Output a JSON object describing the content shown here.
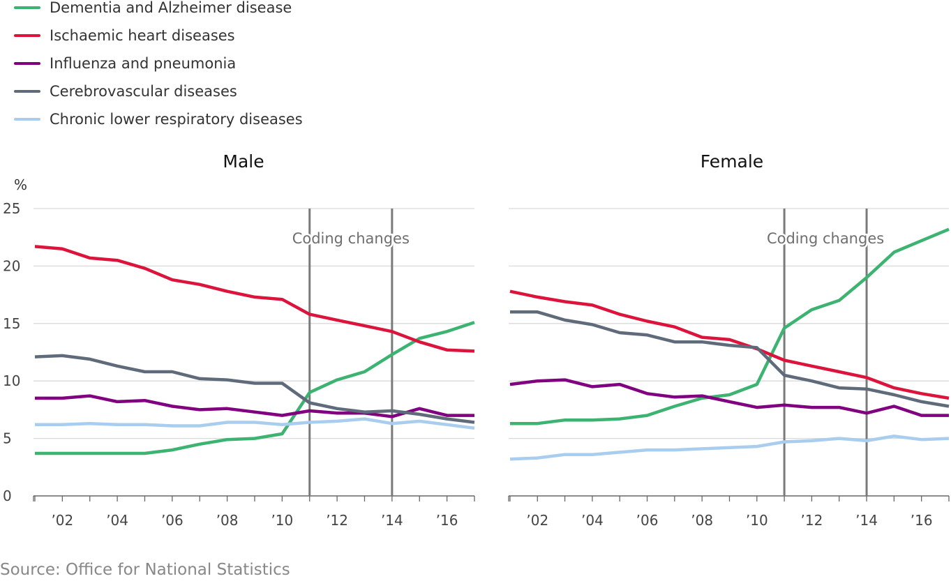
{
  "source": "Source: Office for National Statistics",
  "y_unit_label": "%",
  "annotation": "Coding changes",
  "chart_data": [
    {
      "type": "line",
      "title": "Male",
      "x": [
        2001,
        2002,
        2003,
        2004,
        2005,
        2006,
        2007,
        2008,
        2009,
        2010,
        2011,
        2012,
        2013,
        2014,
        2015,
        2016,
        2017
      ],
      "x_tick_values": [
        2002,
        2004,
        2006,
        2008,
        2010,
        2012,
        2014,
        2016
      ],
      "x_tick_labels": [
        "’02",
        "’04",
        "’06",
        "’08",
        "’10",
        "’12",
        "’14",
        "’16"
      ],
      "xlim": [
        2000.95,
        2017
      ],
      "ylim": [
        0,
        25
      ],
      "y_ticks": [
        0,
        5,
        10,
        15,
        20,
        25
      ],
      "y_tick_labels": [
        "0",
        "5",
        "10",
        "15",
        "20",
        "25"
      ],
      "ylabel": "%",
      "grid": true,
      "legend": "top-left",
      "reference_lines": [
        2011,
        2014
      ],
      "annotation": "Coding changes",
      "series": [
        {
          "name": "Dementia and Alzheimer disease",
          "color": "#3cb371",
          "values": [
            3.7,
            3.7,
            3.7,
            3.7,
            3.7,
            4.0,
            4.5,
            4.9,
            5.0,
            5.4,
            9.0,
            10.1,
            10.8,
            12.3,
            13.7,
            14.3,
            15.1
          ]
        },
        {
          "name": "Ischaemic heart diseases",
          "color": "#dc143c",
          "values": [
            21.7,
            21.5,
            20.7,
            20.5,
            19.8,
            18.8,
            18.4,
            17.8,
            17.3,
            17.1,
            15.8,
            15.3,
            14.8,
            14.3,
            13.4,
            12.7,
            12.6
          ]
        },
        {
          "name": "Influenza and pneumonia",
          "color": "#800080",
          "values": [
            8.5,
            8.5,
            8.7,
            8.2,
            8.3,
            7.8,
            7.5,
            7.6,
            7.3,
            7.0,
            7.4,
            7.2,
            7.2,
            6.9,
            7.6,
            7.0,
            7.0
          ]
        },
        {
          "name": "Cerebrovascular diseases",
          "color": "#5f6b7a",
          "values": [
            12.1,
            12.2,
            11.9,
            11.3,
            10.8,
            10.8,
            10.2,
            10.1,
            9.8,
            9.8,
            8.1,
            7.6,
            7.3,
            7.4,
            7.1,
            6.7,
            6.4
          ]
        },
        {
          "name": "Chronic lower respiratory diseases",
          "color": "#a9cdef",
          "values": [
            6.2,
            6.2,
            6.3,
            6.2,
            6.2,
            6.1,
            6.1,
            6.4,
            6.4,
            6.2,
            6.4,
            6.5,
            6.7,
            6.3,
            6.5,
            6.2,
            5.9
          ]
        }
      ]
    },
    {
      "type": "line",
      "title": "Female",
      "x": [
        2001,
        2002,
        2003,
        2004,
        2005,
        2006,
        2007,
        2008,
        2009,
        2010,
        2011,
        2012,
        2013,
        2014,
        2015,
        2016,
        2017
      ],
      "x_tick_values": [
        2002,
        2004,
        2006,
        2008,
        2010,
        2012,
        2014,
        2016
      ],
      "x_tick_labels": [
        "’02",
        "’04",
        "’06",
        "’08",
        "’10",
        "’12",
        "’14",
        "’16"
      ],
      "xlim": [
        2000.95,
        2017
      ],
      "ylim": [
        0,
        25
      ],
      "y_ticks": [
        0,
        5,
        10,
        15,
        20,
        25
      ],
      "grid": true,
      "reference_lines": [
        2011,
        2014
      ],
      "annotation": "Coding changes",
      "series": [
        {
          "name": "Dementia and Alzheimer disease",
          "color": "#3cb371",
          "values": [
            6.3,
            6.3,
            6.6,
            6.6,
            6.7,
            7.0,
            7.8,
            8.5,
            8.8,
            9.7,
            14.6,
            16.2,
            17.0,
            19.0,
            21.2,
            22.2,
            23.2
          ]
        },
        {
          "name": "Ischaemic heart diseases",
          "color": "#dc143c",
          "values": [
            17.8,
            17.3,
            16.9,
            16.6,
            15.8,
            15.2,
            14.7,
            13.8,
            13.6,
            12.8,
            11.8,
            11.3,
            10.8,
            10.3,
            9.4,
            8.9,
            8.5
          ]
        },
        {
          "name": "Influenza and pneumonia",
          "color": "#800080",
          "values": [
            9.7,
            10.0,
            10.1,
            9.5,
            9.7,
            8.9,
            8.6,
            8.7,
            8.2,
            7.7,
            7.9,
            7.7,
            7.7,
            7.2,
            7.8,
            7.0,
            7.0
          ]
        },
        {
          "name": "Cerebrovascular diseases",
          "color": "#5f6b7a",
          "values": [
            16.0,
            16.0,
            15.3,
            14.9,
            14.2,
            14.0,
            13.4,
            13.4,
            13.1,
            12.9,
            10.5,
            10.0,
            9.4,
            9.3,
            8.8,
            8.2,
            7.8
          ]
        },
        {
          "name": "Chronic lower respiratory diseases",
          "color": "#a9cdef",
          "values": [
            3.2,
            3.3,
            3.6,
            3.6,
            3.8,
            4.0,
            4.0,
            4.1,
            4.2,
            4.3,
            4.7,
            4.8,
            5.0,
            4.8,
            5.2,
            4.9,
            5.0
          ]
        }
      ]
    }
  ]
}
